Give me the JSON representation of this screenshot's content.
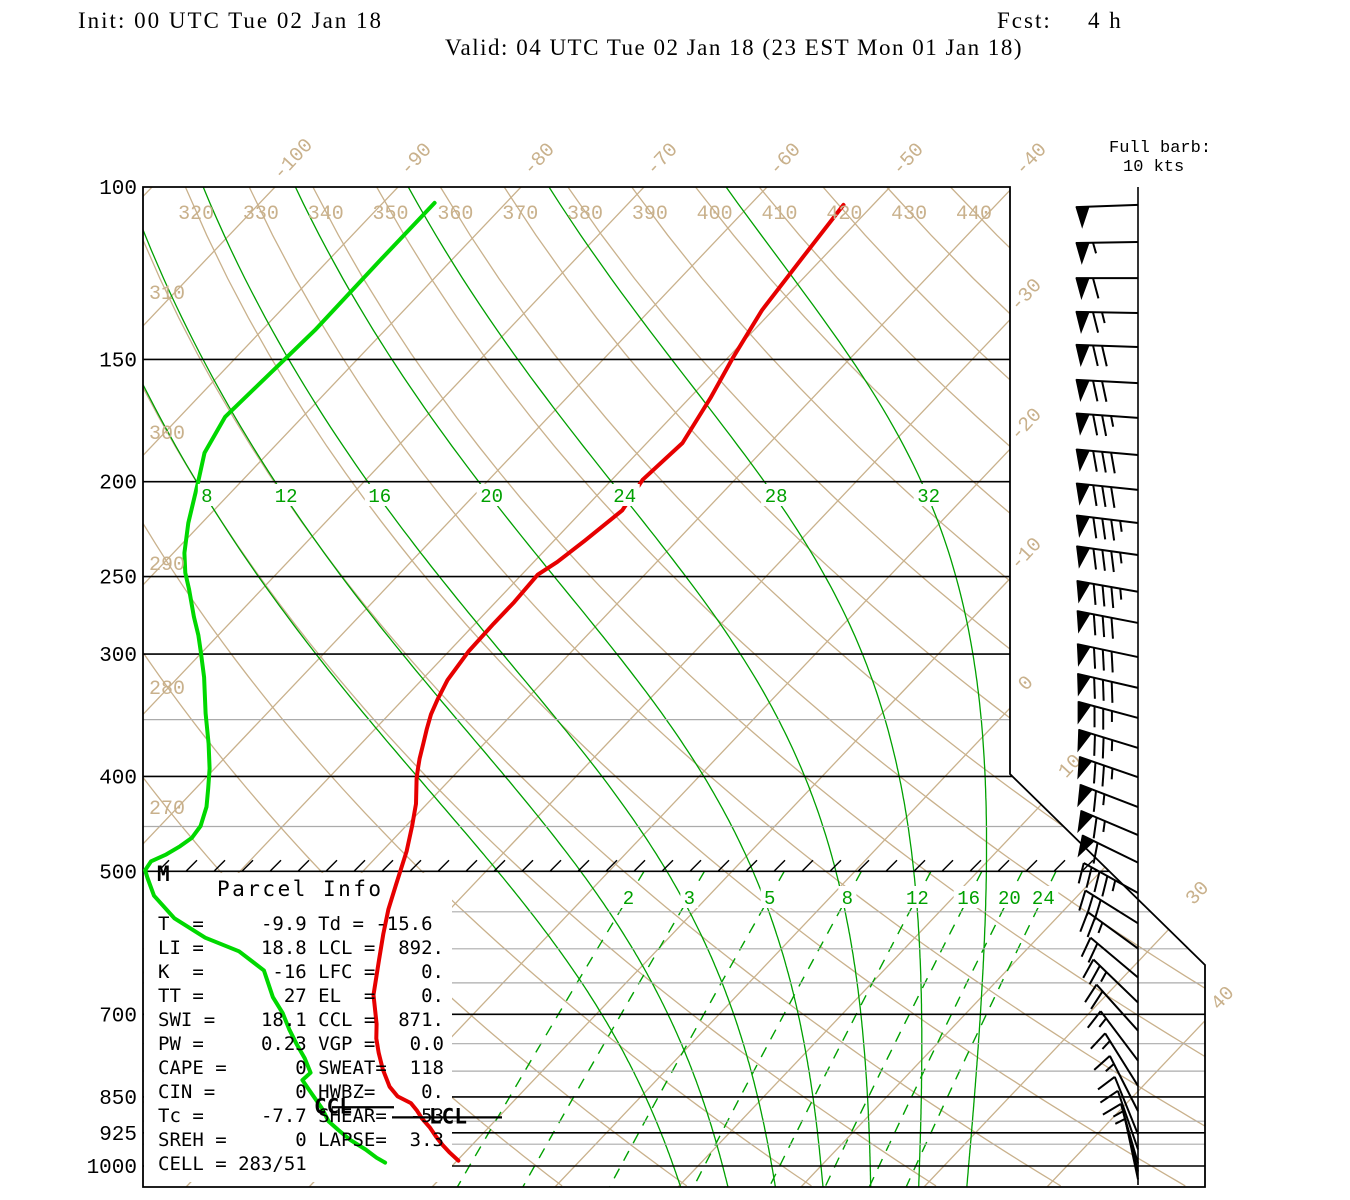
{
  "header": {
    "init": "Init: 00 UTC Tue 02 Jan 18",
    "fcst_label": "Fcst:",
    "fcst_value": "4 h",
    "valid": "Valid: 04 UTC Tue 02 Jan 18 (23 EST Mon 01 Jan 18)"
  },
  "barb_legend": {
    "line1": "Full barb:",
    "line2": "10 kts"
  },
  "markers": {
    "mid_level": "M",
    "ccl": "CCL",
    "lcl": "LCL"
  },
  "parcel_info": {
    "title": "Parcel Info",
    "lines": [
      "T  =     -9.9 Td = -15.6",
      "LI =     18.8 LCL =  892.",
      "K  =      -16 LFC =    0.",
      "TT =       27 EL  =    0.",
      "SWI =    18.1 CCL =  871.",
      "PW =     0.23 VGP =   0.0",
      "CAPE =      0 SWEAT=  118",
      "CIN =       0 HWBZ=    0.",
      "Tc =     -7.7 SHEAR=  -53",
      "SREH =      0 LAPSE=  3.3",
      "CELL = 283/51"
    ]
  },
  "chart_data": {
    "type": "skewt_log_p_sounding",
    "pressure_axis_hpa": [
      100,
      150,
      200,
      250,
      300,
      400,
      500,
      700,
      850,
      925,
      1000
    ],
    "minor_pressure_lines_hpa": [
      350,
      450,
      550,
      600,
      650,
      750,
      800,
      900,
      950
    ],
    "pressure_range_hpa": [
      100,
      1050
    ],
    "isotherm_labels_top_c": [
      -100,
      -90,
      -80,
      -70,
      -60,
      -50,
      -40
    ],
    "isotherm_labels_right_c": [
      -30,
      -20,
      -10,
      0,
      10,
      30,
      40
    ],
    "isotherms_c_every": 10,
    "dry_adiabat_labels_top_k": [
      320,
      330,
      340,
      350,
      360,
      370,
      380,
      390,
      400,
      410,
      420,
      430,
      440
    ],
    "dry_adiabat_labels_left_k": [
      310,
      300,
      290,
      280,
      270
    ],
    "moist_adiabat_values_c": [
      8,
      12,
      16,
      20,
      24,
      28,
      32
    ],
    "mixing_ratio_values_g_kg": [
      2,
      3,
      5,
      8,
      12,
      16,
      20,
      24
    ],
    "hatched_level_hpa": 500,
    "temperature_profile_p_t": [
      [
        104.3,
        -52.4
      ],
      [
        117.3,
        -51.7
      ],
      [
        133.6,
        -50.9
      ],
      [
        149.3,
        -49.6
      ],
      [
        164.3,
        -48.3
      ],
      [
        182.6,
        -47.1
      ],
      [
        199.1,
        -47.5
      ],
      [
        213.9,
        -46.8
      ],
      [
        229.6,
        -47.5
      ],
      [
        241.5,
        -48.1
      ],
      [
        248.9,
        -48.7
      ],
      [
        265.5,
        -48.5
      ],
      [
        279.3,
        -48.5
      ],
      [
        297.9,
        -48.4
      ],
      [
        318.9,
        -47.9
      ],
      [
        333.9,
        -47.2
      ],
      [
        345.6,
        -46.6
      ],
      [
        357.8,
        -45.8
      ],
      [
        369.6,
        -45.0
      ],
      [
        383.6,
        -44.1
      ],
      [
        393.6,
        -43.4
      ],
      [
        402.0,
        -42.8
      ],
      [
        426.6,
        -40.9
      ],
      [
        449.5,
        -39.5
      ],
      [
        477.0,
        -38.0
      ],
      [
        515.6,
        -36.3
      ],
      [
        546.7,
        -35.0
      ],
      [
        579.5,
        -33.5
      ],
      [
        617.0,
        -31.8
      ],
      [
        668.7,
        -29.6
      ],
      [
        716.1,
        -27.1
      ],
      [
        740.9,
        -26.0
      ],
      [
        766.4,
        -24.7
      ],
      [
        796.5,
        -23.1
      ],
      [
        829.8,
        -21.2
      ],
      [
        848.9,
        -19.8
      ],
      [
        862.5,
        -18.2
      ],
      [
        878.3,
        -17.1
      ],
      [
        894.5,
        -16.1
      ],
      [
        913.1,
        -14.8
      ],
      [
        934.3,
        -13.5
      ],
      [
        951.6,
        -12.4
      ],
      [
        969.3,
        -11.2
      ],
      [
        987.4,
        -9.9
      ]
    ],
    "dewpoint_profile_p_t": [
      [
        103.8,
        -85.8
      ],
      [
        118.7,
        -85.8
      ],
      [
        140.0,
        -85.7
      ],
      [
        171.7,
        -86.3
      ],
      [
        186.9,
        -85.2
      ],
      [
        199.1,
        -83.6
      ],
      [
        220.4,
        -81.1
      ],
      [
        236.5,
        -79.1
      ],
      [
        247.8,
        -77.5
      ],
      [
        257.7,
        -75.9
      ],
      [
        274.8,
        -73.4
      ],
      [
        287.1,
        -71.6
      ],
      [
        297.9,
        -70.2
      ],
      [
        316.8,
        -67.9
      ],
      [
        344.8,
        -65.0
      ],
      [
        370.4,
        -62.4
      ],
      [
        392.7,
        -60.4
      ],
      [
        411.3,
        -59.0
      ],
      [
        429.7,
        -57.7
      ],
      [
        449.5,
        -56.7
      ],
      [
        462.2,
        -56.5
      ],
      [
        471.5,
        -56.8
      ],
      [
        480.5,
        -57.3
      ],
      [
        488.4,
        -58.0
      ],
      [
        498.7,
        -57.8
      ],
      [
        508.0,
        -57.0
      ],
      [
        529.6,
        -55.1
      ],
      [
        558.4,
        -51.7
      ],
      [
        584.5,
        -47.7
      ],
      [
        603.5,
        -43.9
      ],
      [
        631.3,
        -40.4
      ],
      [
        672.3,
        -37.6
      ],
      [
        697.6,
        -35.6
      ],
      [
        725.0,
        -33.8
      ],
      [
        750.0,
        -32.1
      ],
      [
        776.0,
        -30.3
      ],
      [
        803.0,
        -28.7
      ],
      [
        817.0,
        -28.8
      ],
      [
        845.0,
        -26.9
      ],
      [
        872.0,
        -25.1
      ],
      [
        900.0,
        -23.5
      ],
      [
        919.0,
        -22.0
      ],
      [
        941.0,
        -20.25
      ],
      [
        962.0,
        -18.3
      ],
      [
        981.0,
        -16.75
      ],
      [
        992.0,
        -15.7
      ]
    ],
    "winds_p_dir_spd": [
      [
        104.3,
        268,
        50
      ],
      [
        113.8,
        269,
        55
      ],
      [
        123.9,
        270,
        60
      ],
      [
        134.5,
        271,
        65
      ],
      [
        145.7,
        272,
        70
      ],
      [
        158.6,
        273,
        70
      ],
      [
        172.1,
        274,
        75
      ],
      [
        187.8,
        275,
        80
      ],
      [
        203.9,
        276,
        80
      ],
      [
        220.4,
        277,
        85
      ],
      [
        237.6,
        278,
        85
      ],
      [
        259.1,
        280,
        85
      ],
      [
        278.8,
        281,
        80
      ],
      [
        302.1,
        282,
        80
      ],
      [
        324.8,
        283,
        80
      ],
      [
        348.6,
        285,
        75
      ],
      [
        374.1,
        287,
        75
      ],
      [
        400.7,
        289,
        75
      ],
      [
        429.9,
        291,
        65
      ],
      [
        459.2,
        293,
        65
      ],
      [
        489.9,
        296,
        60
      ],
      [
        526.2,
        299,
        45
      ],
      [
        565.1,
        302,
        30
      ],
      [
        599.6,
        306,
        25
      ],
      [
        641.9,
        310,
        20
      ],
      [
        680.9,
        314,
        25
      ],
      [
        727.4,
        318,
        20
      ],
      [
        780.6,
        323,
        15
      ],
      [
        828.3,
        328,
        15
      ],
      [
        878.9,
        333,
        15
      ],
      [
        928.2,
        338,
        10
      ],
      [
        961.7,
        341,
        10
      ],
      [
        994.0,
        344,
        10
      ],
      [
        1012.9,
        346,
        5
      ],
      [
        1032.2,
        348,
        5
      ]
    ],
    "ccl_pressure": 871,
    "lcl_pressure": 892,
    "colors": {
      "background_lines": "#c9b18c",
      "moist_lines": "#00a000",
      "temperature_trace": "#e60000",
      "dewpoint_trace": "#00d800",
      "minor_grid": "#ababab",
      "axis": "#000000"
    }
  }
}
